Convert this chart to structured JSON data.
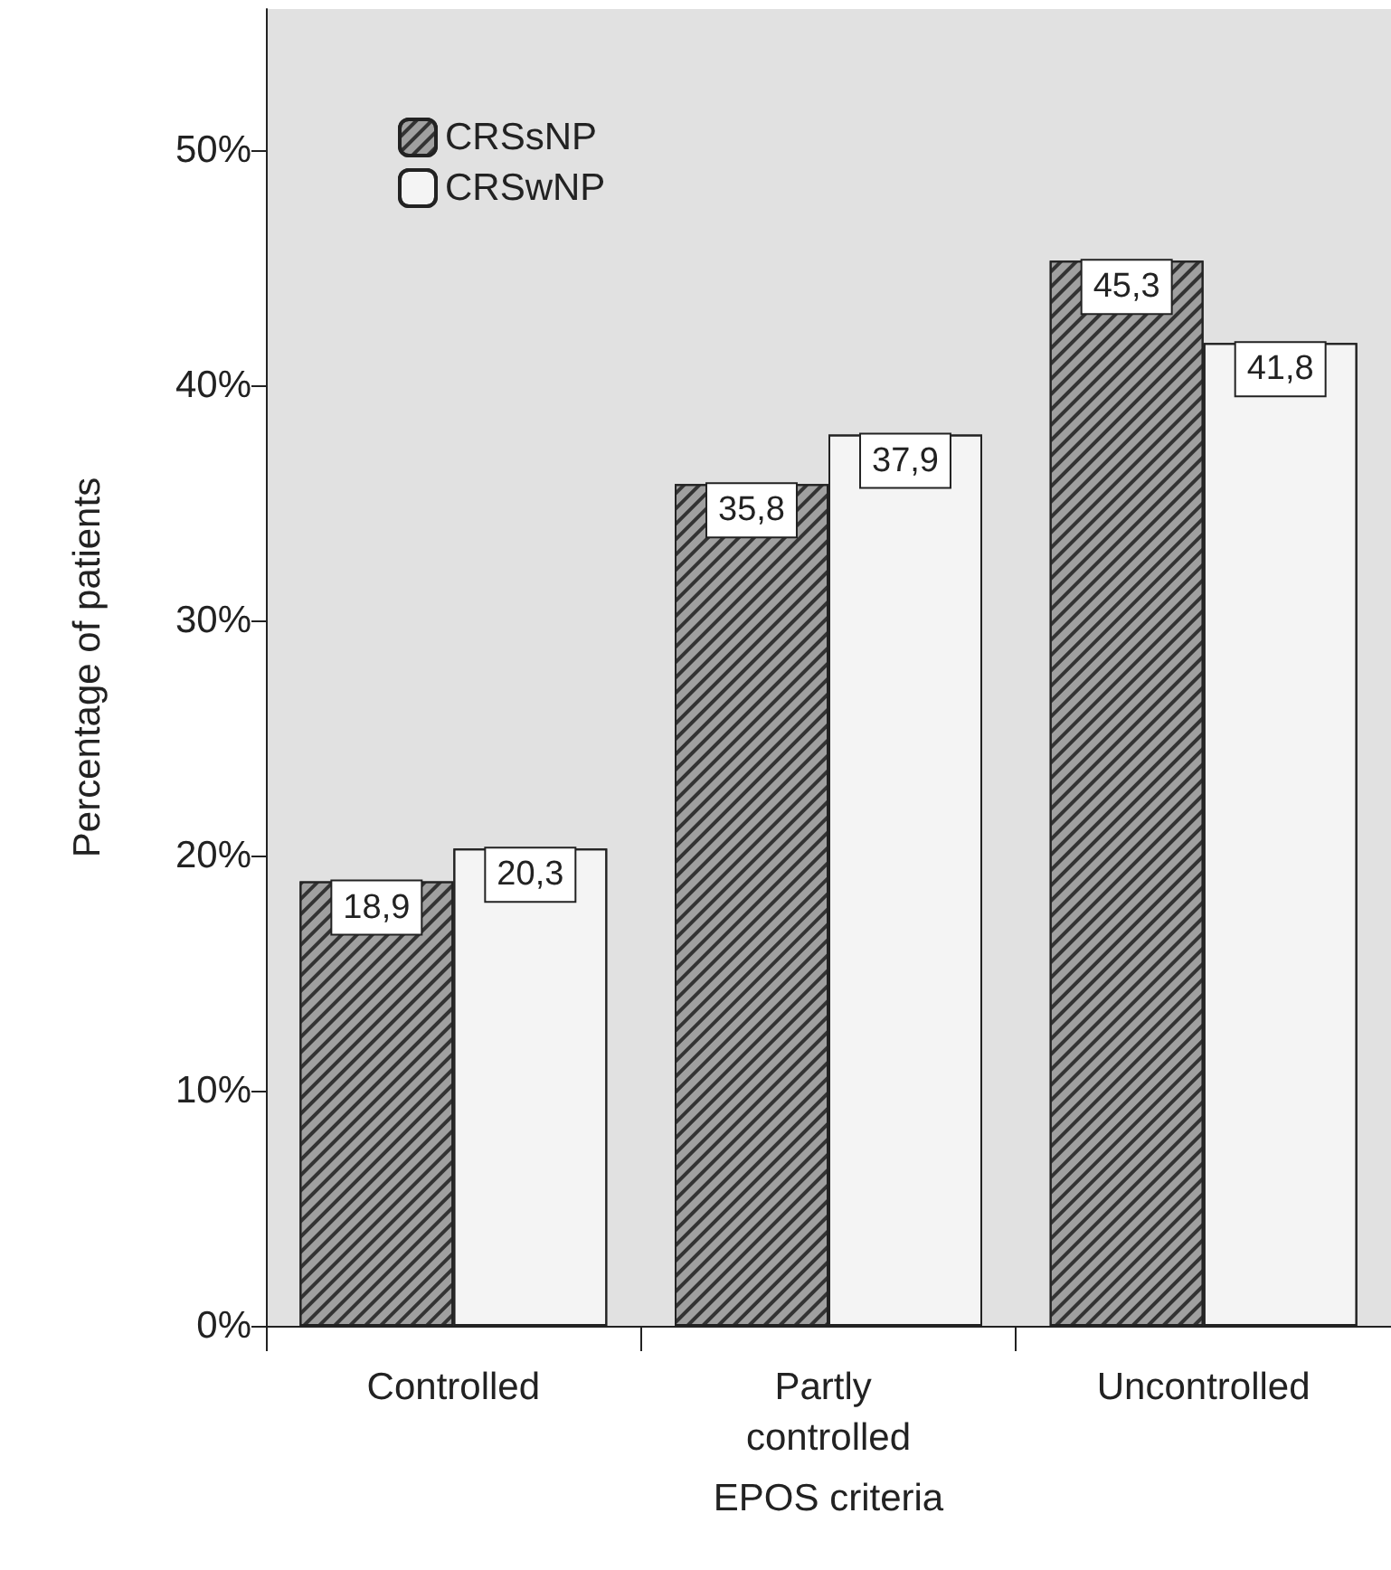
{
  "chart_data": {
    "type": "bar",
    "xlabel": "EPOS criteria",
    "ylabel": "Percentage of patients",
    "categories": [
      "Controlled",
      "Partly controlled",
      "Uncontrolled"
    ],
    "series": [
      {
        "name": "CRSsNP",
        "color": "#a0a0a0",
        "values": [
          18.9,
          35.8,
          45.3
        ],
        "value_labels": [
          "18,9",
          "35,8",
          "45,3"
        ]
      },
      {
        "name": "CRSwNP",
        "color": "#f4f4f4",
        "values": [
          20.3,
          37.9,
          41.8
        ],
        "value_labels": [
          "20,3",
          "37,9",
          "41,8"
        ]
      }
    ],
    "ylim": [
      0,
      56
    ],
    "yticks": [
      {
        "value": 0,
        "label": "0%"
      },
      {
        "value": 10,
        "label": "10%"
      },
      {
        "value": 20,
        "label": "20%"
      },
      {
        "value": 30,
        "label": "30%"
      },
      {
        "value": 40,
        "label": "40%"
      },
      {
        "value": 50,
        "label": "50%"
      }
    ],
    "grid": false,
    "legend": "top left"
  }
}
